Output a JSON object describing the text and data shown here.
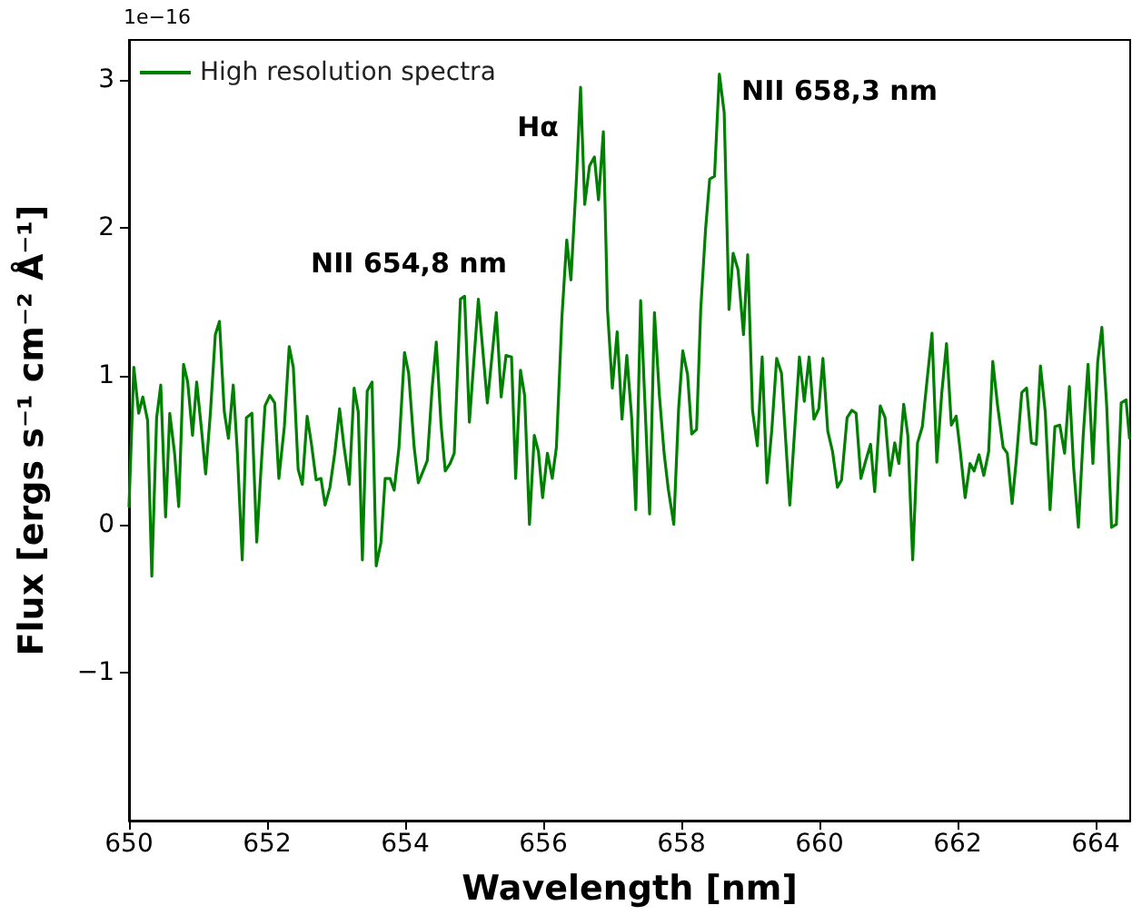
{
  "chart_data": {
    "type": "line",
    "xlabel": "Wavelength [nm]",
    "ylabel": "Flux [ergs s⁻¹ cm⁻² Å⁻¹]",
    "annotations": [
      "1e−16",
      "NII 654,8 nm",
      "Hα",
      "NII 658,3 nm"
    ],
    "series": [
      {
        "name": "High resolution spectra",
        "color": "#008000",
        "x": [
          650.0,
          650.07,
          650.14,
          650.2,
          650.27,
          650.33,
          650.4,
          650.46,
          650.53,
          650.59,
          650.66,
          650.72,
          650.79,
          650.85,
          650.92,
          650.98,
          651.05,
          651.11,
          651.18,
          651.25,
          651.31,
          651.38,
          651.44,
          651.51,
          651.57,
          651.64,
          651.7,
          651.78,
          651.85,
          651.91,
          651.97,
          652.04,
          652.11,
          652.17,
          652.25,
          652.32,
          652.38,
          652.45,
          652.51,
          652.58,
          652.64,
          652.71,
          652.78,
          652.84,
          652.91,
          652.98,
          653.05,
          653.11,
          653.19,
          653.26,
          653.32,
          653.38,
          653.45,
          653.52,
          653.58,
          653.65,
          653.71,
          653.78,
          653.84,
          653.91,
          653.99,
          654.05,
          654.13,
          654.19,
          654.26,
          654.32,
          654.39,
          654.45,
          654.52,
          654.58,
          654.65,
          654.71,
          654.8,
          654.86,
          654.93,
          655.06,
          655.19,
          655.32,
          655.39,
          655.46,
          655.54,
          655.6,
          655.67,
          655.73,
          655.8,
          655.87,
          655.93,
          655.99,
          656.06,
          656.13,
          656.19,
          656.27,
          656.34,
          656.4,
          656.48,
          656.54,
          656.6,
          656.67,
          656.74,
          656.8,
          656.87,
          656.93,
          657.0,
          657.07,
          657.14,
          657.21,
          657.28,
          657.34,
          657.41,
          657.48,
          657.54,
          657.61,
          657.68,
          657.75,
          657.81,
          657.89,
          657.96,
          658.02,
          658.09,
          658.15,
          658.22,
          658.28,
          658.35,
          658.41,
          658.48,
          658.55,
          658.62,
          658.69,
          658.75,
          658.82,
          658.9,
          658.96,
          659.03,
          659.1,
          659.17,
          659.24,
          659.31,
          659.38,
          659.45,
          659.57,
          659.71,
          659.78,
          659.85,
          659.92,
          659.99,
          660.05,
          660.12,
          660.19,
          660.26,
          660.32,
          660.4,
          660.47,
          660.53,
          660.6,
          660.67,
          660.74,
          660.8,
          660.88,
          660.95,
          661.02,
          661.09,
          661.15,
          661.22,
          661.28,
          661.35,
          661.42,
          661.49,
          661.56,
          661.63,
          661.7,
          661.77,
          661.84,
          661.91,
          661.98,
          662.04,
          662.11,
          662.18,
          662.24,
          662.31,
          662.38,
          662.45,
          662.51,
          662.58,
          662.66,
          662.72,
          662.79,
          662.85,
          662.93,
          663.0,
          663.07,
          663.14,
          663.2,
          663.27,
          663.34,
          663.41,
          663.48,
          663.55,
          663.62,
          663.68,
          663.75,
          663.82,
          663.89,
          663.96,
          664.03,
          664.09,
          664.16,
          664.23,
          664.3,
          664.37,
          664.44,
          664.49
        ],
        "values": [
          0.12,
          1.06,
          0.75,
          0.86,
          0.7,
          -0.35,
          0.72,
          0.94,
          0.05,
          0.75,
          0.48,
          0.12,
          1.08,
          0.96,
          0.6,
          0.96,
          0.64,
          0.34,
          0.76,
          1.28,
          1.37,
          0.76,
          0.58,
          0.94,
          0.48,
          -0.24,
          0.72,
          0.75,
          -0.12,
          0.36,
          0.8,
          0.87,
          0.82,
          0.31,
          0.66,
          1.2,
          1.06,
          0.37,
          0.27,
          0.73,
          0.55,
          0.3,
          0.31,
          0.13,
          0.25,
          0.48,
          0.78,
          0.54,
          0.27,
          0.92,
          0.76,
          -0.24,
          0.9,
          0.96,
          -0.28,
          -0.12,
          0.31,
          0.31,
          0.23,
          0.52,
          1.16,
          1.02,
          0.52,
          0.28,
          0.36,
          0.43,
          0.92,
          1.23,
          0.67,
          0.36,
          0.41,
          0.48,
          1.52,
          1.54,
          0.69,
          1.52,
          0.82,
          1.43,
          0.86,
          1.14,
          1.13,
          0.31,
          1.04,
          0.87,
          0.0,
          0.6,
          0.49,
          0.18,
          0.48,
          0.31,
          0.52,
          1.4,
          1.92,
          1.65,
          2.33,
          2.95,
          2.16,
          2.42,
          2.48,
          2.19,
          2.65,
          1.45,
          0.92,
          1.3,
          0.71,
          1.14,
          0.72,
          0.1,
          1.51,
          0.73,
          0.07,
          1.43,
          0.88,
          0.48,
          0.24,
          0.0,
          0.78,
          1.17,
          1.01,
          0.61,
          0.64,
          1.45,
          1.99,
          2.33,
          2.35,
          3.04,
          2.78,
          1.45,
          1.83,
          1.72,
          1.28,
          1.82,
          0.77,
          0.53,
          1.13,
          0.28,
          0.64,
          1.12,
          1.02,
          0.13,
          1.13,
          0.83,
          1.13,
          0.71,
          0.78,
          1.12,
          0.63,
          0.49,
          0.25,
          0.3,
          0.72,
          0.77,
          0.75,
          0.31,
          0.43,
          0.54,
          0.22,
          0.8,
          0.72,
          0.33,
          0.55,
          0.41,
          0.81,
          0.6,
          -0.24,
          0.55,
          0.66,
          0.98,
          1.29,
          0.42,
          0.88,
          1.22,
          0.67,
          0.73,
          0.49,
          0.18,
          0.41,
          0.36,
          0.47,
          0.33,
          0.49,
          1.1,
          0.8,
          0.52,
          0.48,
          0.14,
          0.43,
          0.89,
          0.92,
          0.55,
          0.54,
          1.07,
          0.76,
          0.1,
          0.66,
          0.67,
          0.48,
          0.93,
          0.39,
          -0.02,
          0.6,
          1.08,
          0.41,
          1.1,
          1.33,
          0.8,
          -0.02,
          0.0,
          0.82,
          0.84,
          0.58
        ]
      }
    ],
    "xlim": [
      650,
      664.5
    ],
    "xticks": [
      650,
      652,
      654,
      656,
      658,
      660,
      662,
      664
    ],
    "ylim": [
      -2,
      3.27
    ],
    "yticks": [
      -1,
      0,
      1,
      2,
      3
    ],
    "legend": "top left",
    "grid": false,
    "marker": "none",
    "line_style": "solid"
  }
}
